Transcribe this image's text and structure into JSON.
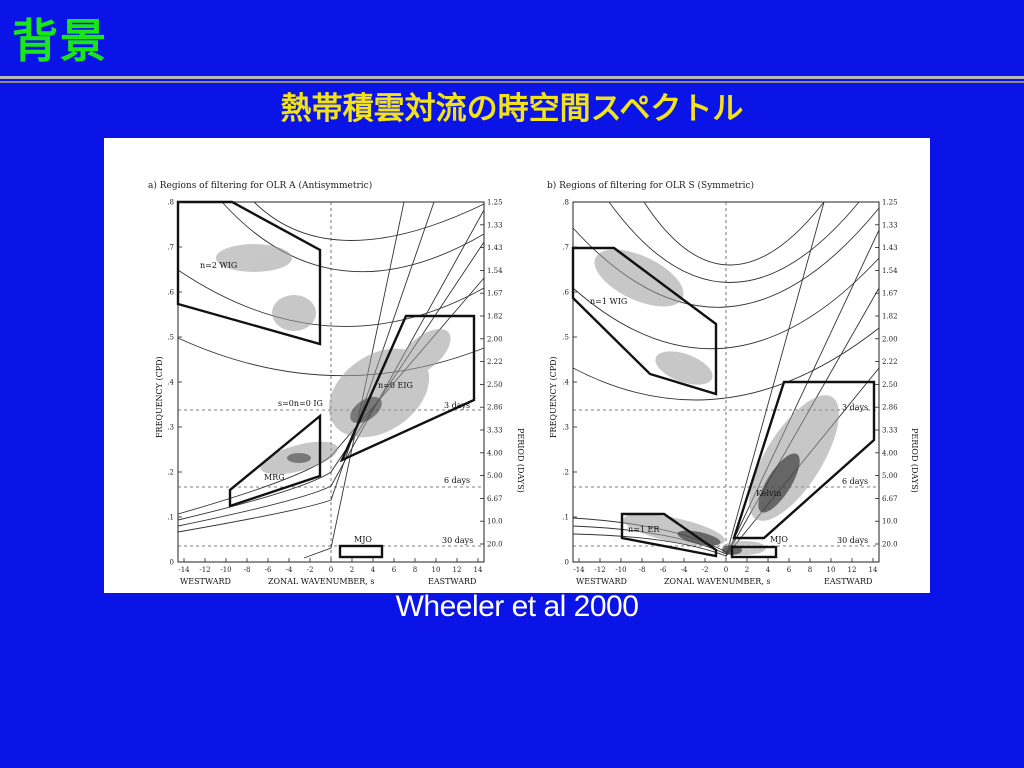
{
  "slide": {
    "title": "背景",
    "subtitle": "熱帯積雲対流の時空間スペクトル",
    "caption": "Wheeler et al 2000"
  },
  "colors": {
    "background": "#0a14e6",
    "title": "#19e619",
    "subtitle": "#f2e21a",
    "caption": "#ffffff"
  },
  "figure": {
    "panels": [
      {
        "heading": "a)   Regions of filtering for OLR A (Antisymmetric)",
        "ylabel": "FREQUENCY (CPD)",
        "y2label": "PERIOD (DAYS)",
        "xlabel_left": "WESTWARD",
        "xlabel_center": "ZONAL WAVENUMBER, s",
        "xlabel_right": "EASTWARD",
        "labels": [
          "n=2 WIG",
          "n=0 EIG",
          "s=0n=0 IG",
          "MRG",
          "MJO",
          "3 days",
          "6 days",
          "30 days"
        ]
      },
      {
        "heading": "b)   Regions of filtering for OLR S (Symmetric)",
        "ylabel": "FREQUENCY (CPD)",
        "y2label": "PERIOD (DAYS)",
        "xlabel_left": "WESTWARD",
        "xlabel_center": "ZONAL WAVENUMBER, s",
        "xlabel_right": "EASTWARD",
        "labels": [
          "n=1 WIG",
          "Kelvin",
          "n=1 ER",
          "MJO",
          "3 days",
          "6 days",
          "30 days"
        ]
      }
    ],
    "freq_ticks": [
      "0",
      ".1",
      ".2",
      ".3",
      ".4",
      ".5",
      ".6",
      ".7",
      ".8"
    ],
    "period_ticks": [
      "1.25",
      "1.33",
      "1.43",
      "1.54",
      "1.67",
      "1.82",
      "2.00",
      "2.22",
      "2.50",
      "2.86",
      "3.33",
      "4.00",
      "5.00",
      "6.67",
      "10.0",
      "20.0"
    ],
    "wavenumber_ticks": [
      "-14",
      "-12",
      "-10",
      "-8",
      "-6",
      "-4",
      "-2",
      "0",
      "2",
      "4",
      "6",
      "8",
      "10",
      "12",
      "14"
    ]
  }
}
